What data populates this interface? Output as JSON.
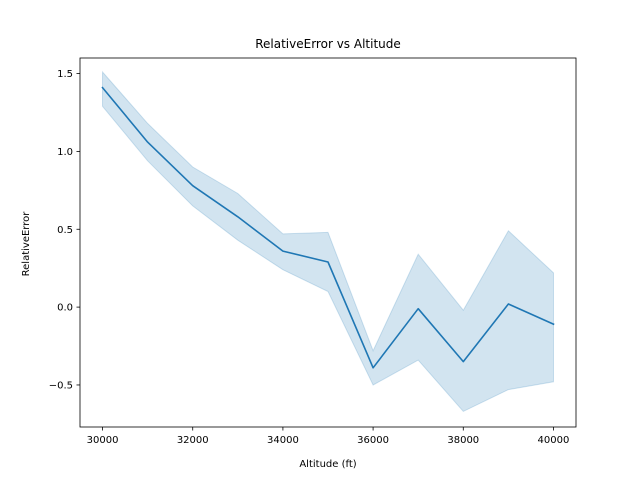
{
  "chart_data": {
    "type": "line",
    "title": "RelativeError vs Altitude",
    "xlabel": "Altitude (ft)",
    "ylabel": "RelativeError",
    "xlim": [
      29500,
      40500
    ],
    "ylim": [
      -0.77,
      1.6
    ],
    "x_ticks": [
      30000,
      32000,
      34000,
      36000,
      38000,
      40000
    ],
    "x_tick_labels": [
      "30000",
      "32000",
      "34000",
      "36000",
      "38000",
      "40000"
    ],
    "y_ticks": [
      -0.5,
      0.0,
      0.5,
      1.0,
      1.5
    ],
    "y_tick_labels": [
      "−0.5",
      "0.0",
      "0.5",
      "1.0",
      "1.5"
    ],
    "grid": false,
    "series": [
      {
        "name": "RelativeError",
        "color": "#1f77b4",
        "x": [
          30000,
          31000,
          32000,
          33000,
          34000,
          35000,
          36000,
          37000,
          38000,
          39000,
          40000
        ],
        "values": [
          1.41,
          1.06,
          0.78,
          0.58,
          0.36,
          0.29,
          -0.39,
          -0.01,
          -0.35,
          0.02,
          -0.11
        ],
        "ci_lower": [
          1.29,
          0.94,
          0.65,
          0.43,
          0.24,
          0.1,
          -0.5,
          -0.34,
          -0.67,
          -0.53,
          -0.48
        ],
        "ci_upper": [
          1.51,
          1.18,
          0.9,
          0.73,
          0.47,
          0.48,
          -0.28,
          0.34,
          -0.02,
          0.49,
          0.22
        ],
        "band_color": "#1f77b4"
      }
    ]
  }
}
